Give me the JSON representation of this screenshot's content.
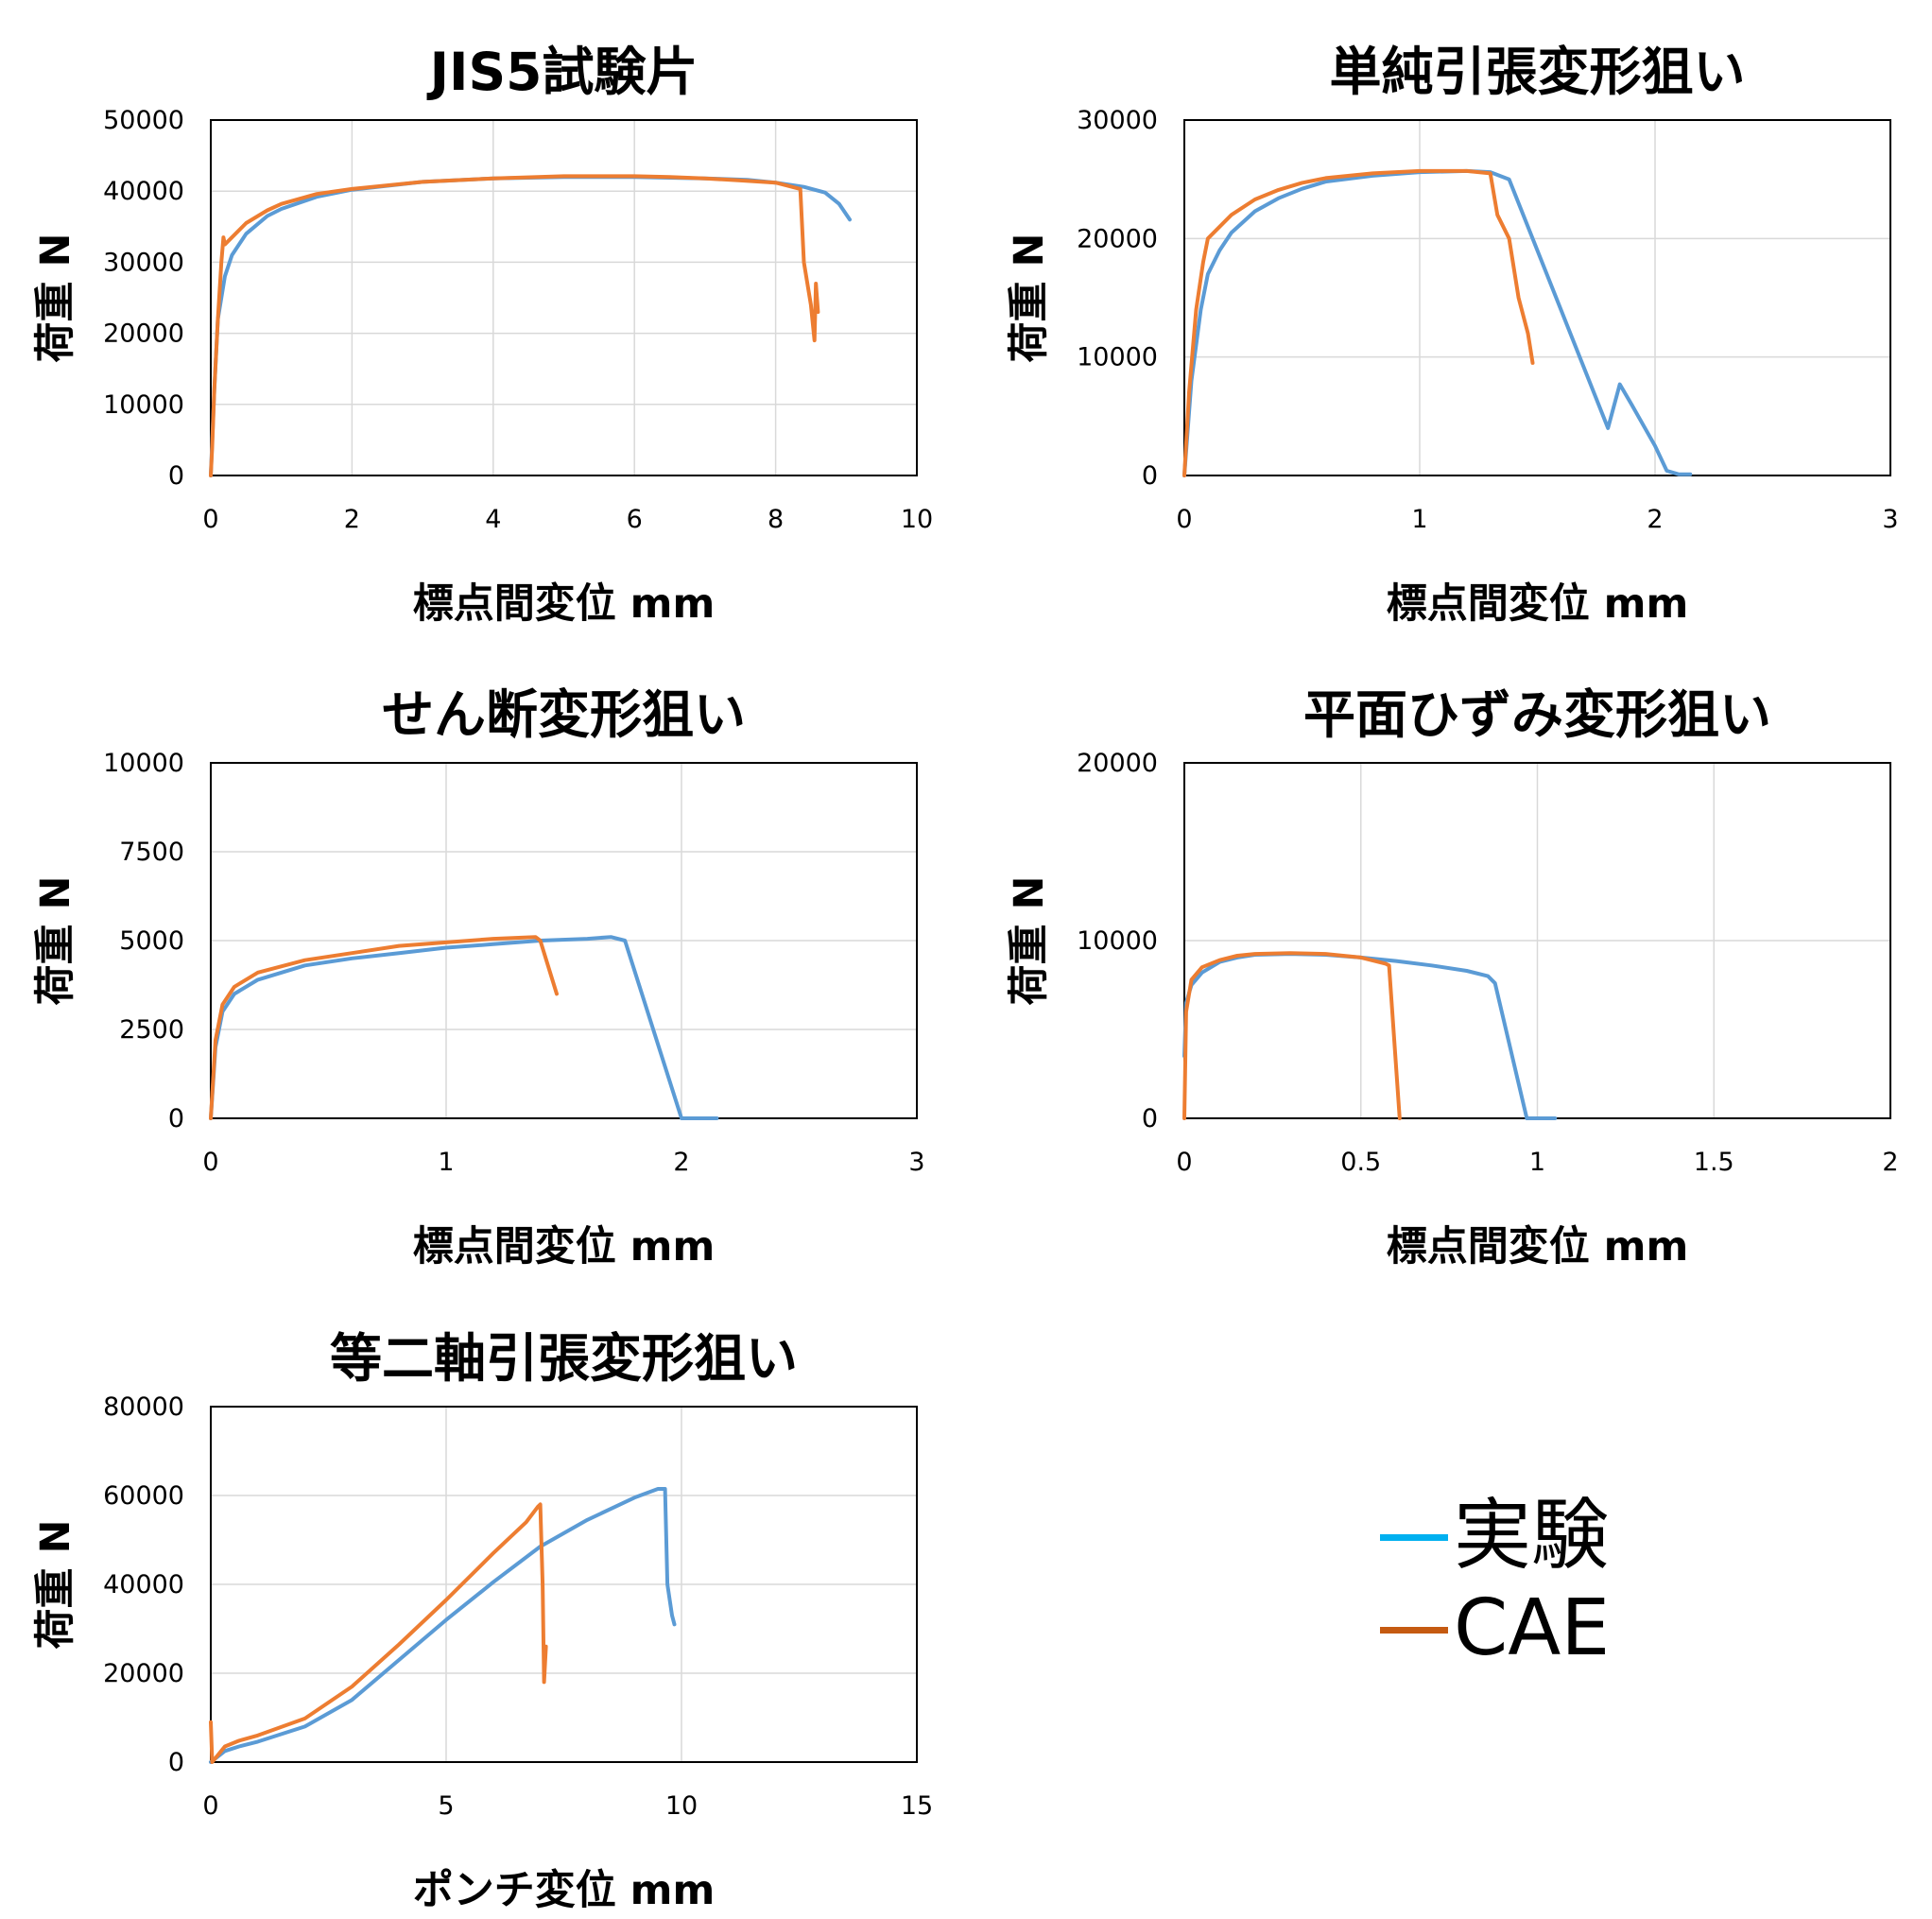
{
  "chart_data": [
    {
      "type": "line",
      "title": "JIS5試験片",
      "xlabel": "標点間変位 mm",
      "ylabel": "荷重 N",
      "xlim": [
        0,
        10
      ],
      "ylim": [
        0,
        50000
      ],
      "xticks": [
        0,
        2,
        4,
        6,
        8,
        10
      ],
      "yticks": [
        0,
        10000,
        20000,
        30000,
        40000,
        50000
      ],
      "series": [
        {
          "name": "実験",
          "color": "#5b9bd5",
          "points": [
            [
              0,
              0
            ],
            [
              0.05,
              12000
            ],
            [
              0.1,
              22000
            ],
            [
              0.2,
              28000
            ],
            [
              0.3,
              31000
            ],
            [
              0.5,
              34000
            ],
            [
              0.8,
              36500
            ],
            [
              1,
              37500
            ],
            [
              1.5,
              39200
            ],
            [
              2,
              40200
            ],
            [
              3,
              41300
            ],
            [
              4,
              41800
            ],
            [
              5,
              42000
            ],
            [
              6,
              42000
            ],
            [
              7,
              41800
            ],
            [
              7.6,
              41600
            ],
            [
              8,
              41200
            ],
            [
              8.4,
              40600
            ],
            [
              8.7,
              39800
            ],
            [
              8.9,
              38200
            ],
            [
              9.05,
              36000
            ]
          ]
        },
        {
          "name": "CAE",
          "color": "#ed7d31",
          "points": [
            [
              0,
              0
            ],
            [
              0.02,
              4000
            ],
            [
              0.05,
              12000
            ],
            [
              0.1,
              22000
            ],
            [
              0.15,
              30000
            ],
            [
              0.18,
              33500
            ],
            [
              0.2,
              32500
            ],
            [
              0.3,
              33500
            ],
            [
              0.5,
              35500
            ],
            [
              0.8,
              37300
            ],
            [
              1,
              38200
            ],
            [
              1.5,
              39600
            ],
            [
              2,
              40300
            ],
            [
              3,
              41300
            ],
            [
              4,
              41800
            ],
            [
              5,
              42100
            ],
            [
              6,
              42100
            ],
            [
              6.5,
              42000
            ],
            [
              7,
              41800
            ],
            [
              7.5,
              41500
            ],
            [
              8,
              41200
            ],
            [
              8.35,
              40300
            ],
            [
              8.4,
              30000
            ],
            [
              8.5,
              24000
            ],
            [
              8.55,
              19000
            ],
            [
              8.57,
              27000
            ],
            [
              8.6,
              23000
            ]
          ]
        }
      ]
    },
    {
      "type": "line",
      "title": "単純引張変形狙い",
      "xlabel": "標点間変位 mm",
      "ylabel": "荷重 N",
      "xlim": [
        0,
        3
      ],
      "ylim": [
        0,
        30000
      ],
      "xticks": [
        0,
        1,
        2,
        3
      ],
      "yticks": [
        0,
        10000,
        20000,
        30000
      ],
      "series": [
        {
          "name": "実験",
          "color": "#5b9bd5",
          "points": [
            [
              0,
              0
            ],
            [
              0.03,
              8000
            ],
            [
              0.07,
              14000
            ],
            [
              0.1,
              17000
            ],
            [
              0.15,
              19000
            ],
            [
              0.2,
              20500
            ],
            [
              0.3,
              22300
            ],
            [
              0.4,
              23400
            ],
            [
              0.5,
              24200
            ],
            [
              0.6,
              24800
            ],
            [
              0.8,
              25300
            ],
            [
              1,
              25600
            ],
            [
              1.2,
              25700
            ],
            [
              1.3,
              25600
            ],
            [
              1.38,
              25000
            ],
            [
              1.8,
              4000
            ],
            [
              1.85,
              7700
            ],
            [
              1.9,
              6000
            ],
            [
              2,
              2500
            ],
            [
              2.05,
              400
            ],
            [
              2.1,
              100
            ],
            [
              2.15,
              100
            ]
          ]
        },
        {
          "name": "CAE",
          "color": "#ed7d31",
          "points": [
            [
              0,
              0
            ],
            [
              0.02,
              7000
            ],
            [
              0.05,
              14000
            ],
            [
              0.08,
              18000
            ],
            [
              0.1,
              20000
            ],
            [
              0.2,
              22000
            ],
            [
              0.3,
              23300
            ],
            [
              0.4,
              24100
            ],
            [
              0.5,
              24700
            ],
            [
              0.6,
              25100
            ],
            [
              0.8,
              25500
            ],
            [
              1,
              25700
            ],
            [
              1.1,
              25700
            ],
            [
              1.2,
              25700
            ],
            [
              1.3,
              25500
            ],
            [
              1.33,
              22000
            ],
            [
              1.38,
              20000
            ],
            [
              1.42,
              15000
            ],
            [
              1.46,
              12000
            ],
            [
              1.48,
              9500
            ]
          ]
        }
      ]
    },
    {
      "type": "line",
      "title": "せん断変形狙い",
      "xlabel": "標点間変位 mm",
      "ylabel": "荷重 N",
      "xlim": [
        0,
        3
      ],
      "ylim": [
        0,
        10000
      ],
      "xticks": [
        0,
        1,
        2,
        3
      ],
      "yticks": [
        0,
        2500,
        5000,
        7500,
        10000
      ],
      "series": [
        {
          "name": "実験",
          "color": "#5b9bd5",
          "points": [
            [
              0,
              0
            ],
            [
              0.02,
              2000
            ],
            [
              0.05,
              3000
            ],
            [
              0.1,
              3500
            ],
            [
              0.2,
              3900
            ],
            [
              0.4,
              4300
            ],
            [
              0.6,
              4500
            ],
            [
              0.8,
              4650
            ],
            [
              1,
              4800
            ],
            [
              1.2,
              4900
            ],
            [
              1.4,
              5000
            ],
            [
              1.6,
              5050
            ],
            [
              1.7,
              5100
            ],
            [
              1.76,
              5000
            ],
            [
              2,
              0
            ],
            [
              2.15,
              0
            ]
          ]
        },
        {
          "name": "CAE",
          "color": "#ed7d31",
          "points": [
            [
              0,
              0
            ],
            [
              0.02,
              2200
            ],
            [
              0.05,
              3200
            ],
            [
              0.1,
              3700
            ],
            [
              0.2,
              4100
            ],
            [
              0.4,
              4450
            ],
            [
              0.6,
              4650
            ],
            [
              0.8,
              4850
            ],
            [
              1,
              4950
            ],
            [
              1.2,
              5050
            ],
            [
              1.38,
              5100
            ],
            [
              1.4,
              5000
            ],
            [
              1.47,
              3500
            ]
          ]
        }
      ]
    },
    {
      "type": "line",
      "title": "平面ひずみ変形狙い",
      "xlabel": "標点間変位 mm",
      "ylabel": "荷重 N",
      "xlim": [
        0,
        2
      ],
      "ylim": [
        0,
        20000
      ],
      "xticks": [
        0,
        0.5,
        1,
        1.5,
        2
      ],
      "xtick_labels": [
        "0",
        "0.5",
        "1",
        "1.5",
        "2"
      ],
      "yticks": [
        0,
        10000,
        20000
      ],
      "series": [
        {
          "name": "実験",
          "color": "#5b9bd5",
          "points": [
            [
              0,
              3500
            ],
            [
              0.005,
              6500
            ],
            [
              0.02,
              7500
            ],
            [
              0.05,
              8200
            ],
            [
              0.1,
              8800
            ],
            [
              0.15,
              9050
            ],
            [
              0.2,
              9200
            ],
            [
              0.3,
              9250
            ],
            [
              0.4,
              9200
            ],
            [
              0.5,
              9050
            ],
            [
              0.6,
              8850
            ],
            [
              0.7,
              8600
            ],
            [
              0.8,
              8300
            ],
            [
              0.86,
              8000
            ],
            [
              0.88,
              7600
            ],
            [
              0.97,
              0
            ],
            [
              1.05,
              0
            ]
          ]
        },
        {
          "name": "CAE",
          "color": "#ed7d31",
          "points": [
            [
              0,
              0
            ],
            [
              0.005,
              6000
            ],
            [
              0.02,
              7800
            ],
            [
              0.05,
              8500
            ],
            [
              0.1,
              8900
            ],
            [
              0.15,
              9150
            ],
            [
              0.2,
              9250
            ],
            [
              0.3,
              9300
            ],
            [
              0.4,
              9250
            ],
            [
              0.5,
              9050
            ],
            [
              0.57,
              8700
            ],
            [
              0.58,
              8600
            ],
            [
              0.61,
              0
            ]
          ]
        }
      ]
    },
    {
      "type": "line",
      "title": "等二軸引張変形狙い",
      "xlabel": "ポンチ変位 mm",
      "ylabel": "荷重 N",
      "xlim": [
        0,
        15
      ],
      "ylim": [
        0,
        80000
      ],
      "xticks": [
        0,
        5,
        10,
        15
      ],
      "yticks": [
        0,
        20000,
        40000,
        60000,
        80000
      ],
      "series": [
        {
          "name": "実験",
          "color": "#5b9bd5",
          "points": [
            [
              0,
              0
            ],
            [
              0.3,
              2500
            ],
            [
              0.6,
              3500
            ],
            [
              1,
              4600
            ],
            [
              2,
              8000
            ],
            [
              3,
              14000
            ],
            [
              4,
              23000
            ],
            [
              5,
              32000
            ],
            [
              6,
              40500
            ],
            [
              7,
              48500
            ],
            [
              8,
              54500
            ],
            [
              9,
              59500
            ],
            [
              9.5,
              61500
            ],
            [
              9.65,
              61500
            ],
            [
              9.7,
              40000
            ],
            [
              9.8,
              33000
            ],
            [
              9.85,
              31000
            ]
          ]
        },
        {
          "name": "CAE",
          "color": "#ed7d31",
          "points": [
            [
              0,
              9000
            ],
            [
              0.03,
              0
            ],
            [
              0.3,
              3500
            ],
            [
              0.6,
              4800
            ],
            [
              1,
              6000
            ],
            [
              2,
              9800
            ],
            [
              3,
              17000
            ],
            [
              4,
              26500
            ],
            [
              5,
              36500
            ],
            [
              6,
              47000
            ],
            [
              6.7,
              54000
            ],
            [
              6.95,
              57500
            ],
            [
              7,
              58000
            ],
            [
              7.05,
              40000
            ],
            [
              7.08,
              18000
            ],
            [
              7.12,
              26000
            ]
          ]
        }
      ]
    }
  ],
  "legend": {
    "items": [
      {
        "label": "実験",
        "color": "#00b0f0"
      },
      {
        "label": "CAE",
        "color": "#c55a11"
      }
    ]
  }
}
